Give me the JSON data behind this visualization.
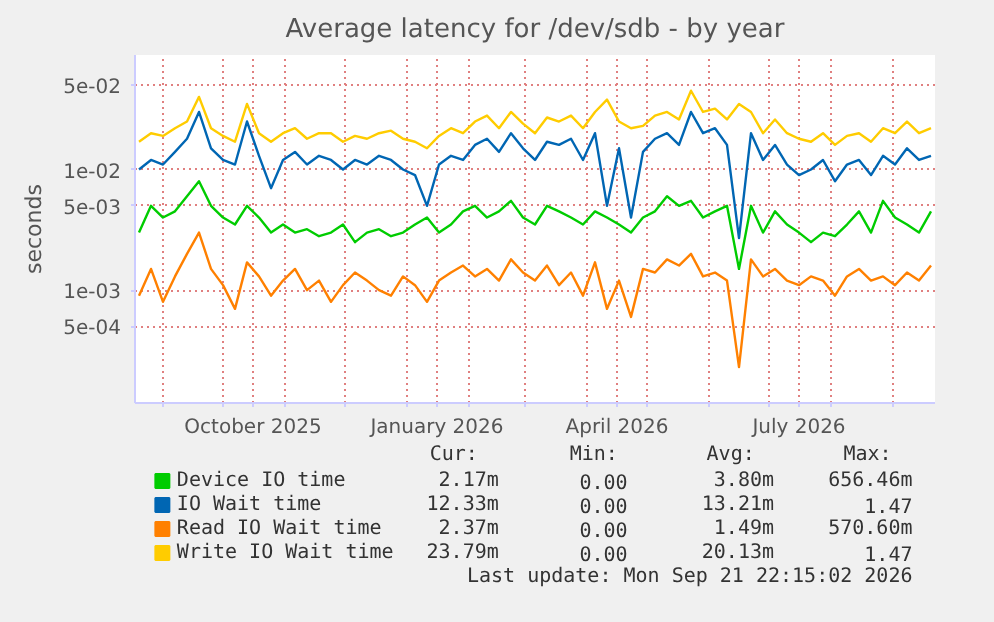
{
  "chart_data": {
    "type": "line",
    "title": "Average latency for /dev/sdb - by year",
    "ylabel": "seconds",
    "log": true,
    "grid": true,
    "legend": "bottom",
    "line_style": "solid",
    "marker": "none",
    "xlim": [
      "2025-08-18",
      "2026-09-22"
    ],
    "xticks": [
      {
        "value": "2025-09-01",
        "label": null
      },
      {
        "value": "2025-10-01",
        "label": null
      },
      {
        "value": "2025-10-16",
        "label": "October 2025"
      },
      {
        "value": "2025-11-01",
        "label": null
      },
      {
        "value": "2025-12-01",
        "label": null
      },
      {
        "value": "2026-01-01",
        "label": null
      },
      {
        "value": "2026-01-16",
        "label": "January 2026"
      },
      {
        "value": "2026-02-01",
        "label": null
      },
      {
        "value": "2026-03-01",
        "label": null
      },
      {
        "value": "2026-04-01",
        "label": null
      },
      {
        "value": "2026-04-16",
        "label": "April 2026"
      },
      {
        "value": "2026-05-01",
        "label": null
      },
      {
        "value": "2026-06-01",
        "label": null
      },
      {
        "value": "2026-07-01",
        "label": null
      },
      {
        "value": "2026-07-16",
        "label": "July 2026"
      },
      {
        "value": "2026-08-01",
        "label": null
      },
      {
        "value": "2026-09-01",
        "label": null
      }
    ],
    "ylim": [
      0.000116,
      0.089
    ],
    "yticks": [
      {
        "value": 0.0005,
        "label": "5e-04"
      },
      {
        "value": 0.001,
        "label": "1e-03"
      },
      {
        "value": 0.005,
        "label": "5e-03"
      },
      {
        "value": 0.01,
        "label": "1e-02"
      },
      {
        "value": 0.05,
        "label": "5e-02"
      }
    ],
    "x": [
      "2025-08-20",
      "2025-08-26",
      "2025-09-01",
      "2025-09-07",
      "2025-09-13",
      "2025-09-19",
      "2025-09-25",
      "2025-10-01",
      "2025-10-07",
      "2025-10-13",
      "2025-10-19",
      "2025-10-25",
      "2025-10-31",
      "2025-11-06",
      "2025-11-12",
      "2025-11-18",
      "2025-11-24",
      "2025-11-30",
      "2025-12-06",
      "2025-12-12",
      "2025-12-18",
      "2025-12-24",
      "2025-12-30",
      "2026-01-05",
      "2026-01-11",
      "2026-01-17",
      "2026-01-23",
      "2026-01-29",
      "2026-02-04",
      "2026-02-10",
      "2026-02-16",
      "2026-02-22",
      "2026-02-28",
      "2026-03-06",
      "2026-03-12",
      "2026-03-18",
      "2026-03-24",
      "2026-03-30",
      "2026-04-05",
      "2026-04-11",
      "2026-04-17",
      "2026-04-23",
      "2026-04-29",
      "2026-05-05",
      "2026-05-11",
      "2026-05-17",
      "2026-05-23",
      "2026-05-29",
      "2026-06-04",
      "2026-06-10",
      "2026-06-16",
      "2026-06-22",
      "2026-06-28",
      "2026-07-04",
      "2026-07-10",
      "2026-07-16",
      "2026-07-22",
      "2026-07-28",
      "2026-08-03",
      "2026-08-09",
      "2026-08-15",
      "2026-08-21",
      "2026-08-27",
      "2026-09-02",
      "2026-09-08",
      "2026-09-14",
      "2026-09-20"
    ],
    "series": [
      {
        "name": "Device IO time",
        "color": "#00cc00",
        "values": [
          0.003,
          0.005,
          0.004,
          0.0045,
          0.006,
          0.008,
          0.005,
          0.004,
          0.0035,
          0.005,
          0.004,
          0.003,
          0.0035,
          0.003,
          0.0032,
          0.0028,
          0.003,
          0.0035,
          0.0025,
          0.003,
          0.0032,
          0.0028,
          0.003,
          0.0035,
          0.004,
          0.003,
          0.0035,
          0.0045,
          0.005,
          0.004,
          0.0045,
          0.0055,
          0.004,
          0.0035,
          0.005,
          0.0045,
          0.004,
          0.0035,
          0.0045,
          0.004,
          0.0035,
          0.003,
          0.004,
          0.0045,
          0.006,
          0.005,
          0.0055,
          0.004,
          0.0045,
          0.005,
          0.0015,
          0.005,
          0.003,
          0.0045,
          0.0035,
          0.003,
          0.0025,
          0.003,
          0.0028,
          0.0035,
          0.0045,
          0.003,
          0.0055,
          0.004,
          0.0035,
          0.003,
          0.0045
        ]
      },
      {
        "name": "IO Wait time",
        "color": "#0066b3",
        "values": [
          0.01,
          0.012,
          0.011,
          0.014,
          0.018,
          0.03,
          0.015,
          0.012,
          0.011,
          0.025,
          0.013,
          0.007,
          0.012,
          0.014,
          0.011,
          0.013,
          0.012,
          0.01,
          0.012,
          0.011,
          0.013,
          0.012,
          0.01,
          0.009,
          0.005,
          0.011,
          0.013,
          0.012,
          0.016,
          0.018,
          0.014,
          0.02,
          0.015,
          0.012,
          0.017,
          0.016,
          0.018,
          0.012,
          0.02,
          0.005,
          0.015,
          0.004,
          0.014,
          0.018,
          0.02,
          0.016,
          0.03,
          0.02,
          0.022,
          0.016,
          0.0027,
          0.02,
          0.012,
          0.016,
          0.011,
          0.009,
          0.01,
          0.012,
          0.008,
          0.011,
          0.012,
          0.009,
          0.013,
          0.011,
          0.015,
          0.012,
          0.013
        ]
      },
      {
        "name": "Read IO Wait time",
        "color": "#ff8000",
        "values": [
          0.0009,
          0.0015,
          0.0008,
          0.0013,
          0.002,
          0.003,
          0.0015,
          0.0011,
          0.0007,
          0.0017,
          0.0013,
          0.0009,
          0.0012,
          0.0015,
          0.001,
          0.0012,
          0.0008,
          0.0011,
          0.0014,
          0.0012,
          0.001,
          0.0009,
          0.0013,
          0.0011,
          0.0008,
          0.0012,
          0.0014,
          0.0016,
          0.0013,
          0.0015,
          0.0012,
          0.0018,
          0.0014,
          0.0012,
          0.0016,
          0.0011,
          0.0014,
          0.0009,
          0.0017,
          0.0007,
          0.0012,
          0.0006,
          0.0015,
          0.0014,
          0.0018,
          0.0016,
          0.002,
          0.0013,
          0.0014,
          0.0012,
          0.00023,
          0.0018,
          0.0013,
          0.0015,
          0.0012,
          0.0011,
          0.0013,
          0.0012,
          0.0009,
          0.0013,
          0.0015,
          0.0012,
          0.0013,
          0.0011,
          0.0014,
          0.0012,
          0.0016
        ]
      },
      {
        "name": "Write IO Wait time",
        "color": "#ffcc00",
        "values": [
          0.017,
          0.02,
          0.019,
          0.022,
          0.025,
          0.04,
          0.022,
          0.019,
          0.017,
          0.035,
          0.02,
          0.017,
          0.02,
          0.022,
          0.018,
          0.02,
          0.02,
          0.017,
          0.019,
          0.018,
          0.02,
          0.021,
          0.018,
          0.017,
          0.015,
          0.019,
          0.022,
          0.02,
          0.025,
          0.028,
          0.022,
          0.03,
          0.024,
          0.02,
          0.027,
          0.025,
          0.028,
          0.022,
          0.03,
          0.038,
          0.025,
          0.022,
          0.023,
          0.028,
          0.03,
          0.026,
          0.045,
          0.03,
          0.032,
          0.026,
          0.035,
          0.03,
          0.02,
          0.026,
          0.02,
          0.018,
          0.017,
          0.02,
          0.016,
          0.019,
          0.02,
          0.017,
          0.022,
          0.02,
          0.025,
          0.02,
          0.022
        ]
      }
    ],
    "annotations": [
      "Cur:",
      "Min:",
      "Avg:",
      "Max:",
      "2.17m",
      "0.00",
      "3.80m",
      "656.46m",
      "12.33m",
      "0.00",
      "13.21m",
      "1.47",
      "2.37m",
      "0.00",
      "1.49m",
      "570.60m",
      "23.79m",
      "0.00",
      "20.13m",
      "1.47",
      "Last update: Mon Sep 21 22:15:02 2026"
    ]
  }
}
